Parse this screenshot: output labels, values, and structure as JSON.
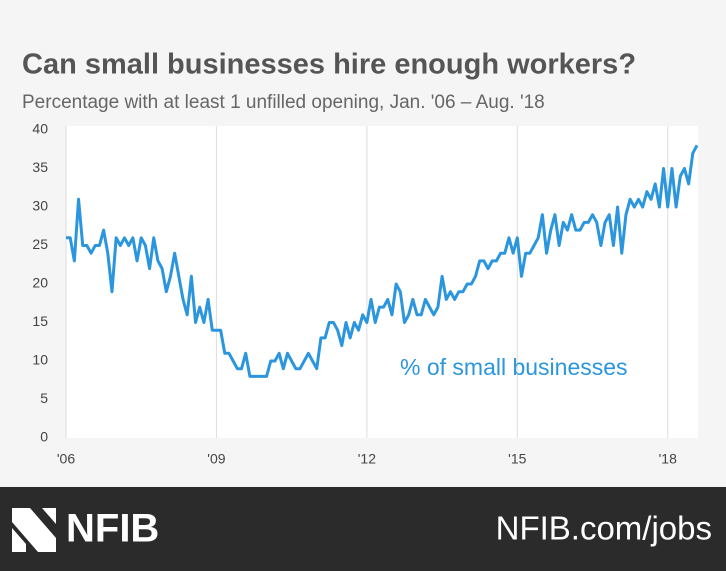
{
  "chart_data": {
    "type": "line",
    "title": "Can small businesses hire enough workers?",
    "subtitle": "Percentage with at least 1 unfilled opening, Jan. '06 – Aug. '18",
    "annotation": "% of small businesses",
    "color": "#2b96de",
    "categories": [
      "'06",
      null,
      null,
      null,
      null,
      null,
      null,
      null,
      null,
      null,
      null,
      null,
      null,
      null,
      null,
      null,
      null,
      null,
      null,
      null,
      null,
      null,
      null,
      null,
      null,
      null,
      null,
      null,
      null,
      null,
      null,
      null,
      null,
      null,
      null,
      null,
      "'09",
      null,
      null,
      null,
      null,
      null,
      null,
      null,
      null,
      null,
      null,
      null,
      null,
      null,
      null,
      null,
      null,
      null,
      null,
      null,
      null,
      null,
      null,
      null,
      null,
      null,
      null,
      null,
      null,
      null,
      null,
      null,
      null,
      null,
      null,
      null,
      "'12",
      null,
      null,
      null,
      null,
      null,
      null,
      null,
      null,
      null,
      null,
      null,
      null,
      null,
      null,
      null,
      null,
      null,
      null,
      null,
      null,
      null,
      null,
      null,
      null,
      null,
      null,
      null,
      null,
      null,
      null,
      null,
      null,
      null,
      null,
      null,
      "'15",
      null,
      null,
      null,
      null,
      null,
      null,
      null,
      null,
      null,
      null,
      null,
      null,
      null,
      null,
      null,
      null,
      null,
      null,
      null,
      null,
      null,
      null,
      null,
      null,
      null,
      null,
      null,
      null,
      null,
      null,
      null,
      null,
      null,
      null,
      null,
      "'18",
      null,
      null,
      null,
      null,
      null,
      null,
      null
    ],
    "values": [
      26,
      26,
      23,
      31,
      25,
      25,
      24,
      25,
      25,
      27,
      24,
      19,
      26,
      25,
      26,
      25,
      26,
      23,
      26,
      25,
      22,
      26,
      23,
      22,
      19,
      21,
      24,
      21,
      18,
      16,
      21,
      15,
      17,
      15,
      18,
      14,
      14,
      14,
      11,
      11,
      10,
      9,
      9,
      11,
      8,
      8,
      8,
      8,
      8,
      10,
      10,
      11,
      9,
      11,
      10,
      9,
      9,
      10,
      11,
      10,
      9,
      13,
      13,
      15,
      15,
      14,
      12,
      15,
      13,
      15,
      14,
      16,
      15,
      18,
      15,
      17,
      17,
      18,
      16,
      20,
      19,
      15,
      16,
      18,
      16,
      16,
      18,
      17,
      16,
      17,
      21,
      18,
      19,
      18,
      19,
      19,
      20,
      20,
      21,
      23,
      23,
      22,
      23,
      23,
      24,
      24,
      26,
      24,
      26,
      21,
      24,
      24,
      25,
      26,
      29,
      24,
      27,
      29,
      25,
      28,
      27,
      29,
      27,
      27,
      28,
      28,
      29,
      28,
      25,
      28,
      29,
      25,
      30,
      24,
      29,
      31,
      30,
      31,
      30,
      32,
      31,
      33,
      30,
      35,
      30,
      35,
      30,
      34,
      35,
      33,
      37,
      38
    ],
    "ylim": [
      0,
      40
    ],
    "yticks": [
      0,
      5,
      10,
      15,
      20,
      25,
      30,
      35,
      40
    ],
    "grid": true
  },
  "footer": {
    "logo": "NFIB",
    "url": "NFIB.com/jobs"
  }
}
